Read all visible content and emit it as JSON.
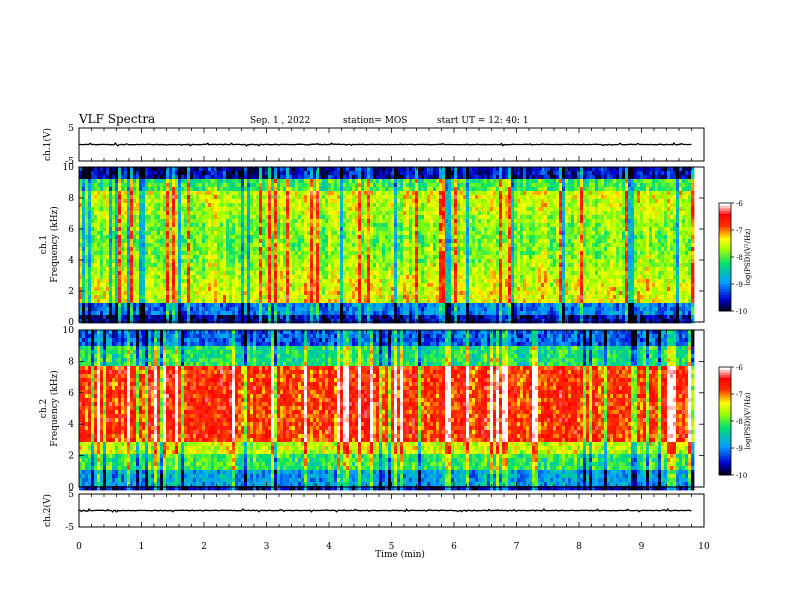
{
  "header": {
    "title": "VLF Spectra",
    "date": "Sep. 1 , 2022",
    "station": "station= MOS",
    "start": "start UT =  12: 40: 1"
  },
  "chart_data": [
    {
      "type": "line",
      "panel": "waveform-ch1",
      "ylabel": "ch.1(V)",
      "ylim": [
        -5,
        5
      ],
      "yticks": [
        "5",
        "-5"
      ],
      "x": [
        0,
        1,
        2,
        3,
        4,
        5,
        6,
        7,
        8,
        9,
        9.8
      ],
      "series": [
        {
          "values": [
            0,
            0,
            0,
            0,
            0,
            0,
            0,
            0,
            0,
            0,
            0
          ]
        }
      ]
    },
    {
      "type": "heatmap",
      "panel": "spectrogram-ch1",
      "ylabel": "ch.1  Frequency (kHz)",
      "ylim": [
        0,
        10
      ],
      "yticks": [
        "0",
        "2",
        "4",
        "6",
        "8",
        "10"
      ],
      "xlim": [
        0,
        9.8
      ],
      "colorbar": {
        "label": "log(PSD)(V²/Hz)",
        "ticks": [
          "-6",
          "-7",
          "-8",
          "-9",
          "-10"
        ],
        "range": [
          -10,
          -6
        ]
      }
    },
    {
      "type": "heatmap",
      "panel": "spectrogram-ch2",
      "ylabel": "ch.2  Frequency (kHz)",
      "ylim": [
        0,
        10
      ],
      "yticks": [
        "0",
        "2",
        "4",
        "6",
        "8",
        "10"
      ],
      "xlim": [
        0,
        9.8
      ],
      "colorbar": {
        "label": "log(PSD)(V²/Hz)",
        "ticks": [
          "-6",
          "-7",
          "-8",
          "-9",
          "-10"
        ],
        "range": [
          -10,
          -6
        ]
      }
    },
    {
      "type": "line",
      "panel": "waveform-ch2",
      "ylabel": "ch.2(V)",
      "ylim": [
        -5,
        5
      ],
      "yticks": [
        "5",
        "-5"
      ],
      "x": [
        0,
        1,
        2,
        3,
        4,
        5,
        6,
        7,
        8,
        9,
        9.8
      ],
      "series": [
        {
          "values": [
            0,
            0,
            0,
            0,
            0,
            0,
            0,
            0,
            0,
            0,
            0
          ]
        }
      ]
    }
  ],
  "xaxis": {
    "label": "Time  (min)",
    "ticks": [
      "0",
      "1",
      "2",
      "3",
      "4",
      "5",
      "6",
      "7",
      "8",
      "9",
      "10"
    ],
    "xlim": [
      0,
      10
    ]
  }
}
